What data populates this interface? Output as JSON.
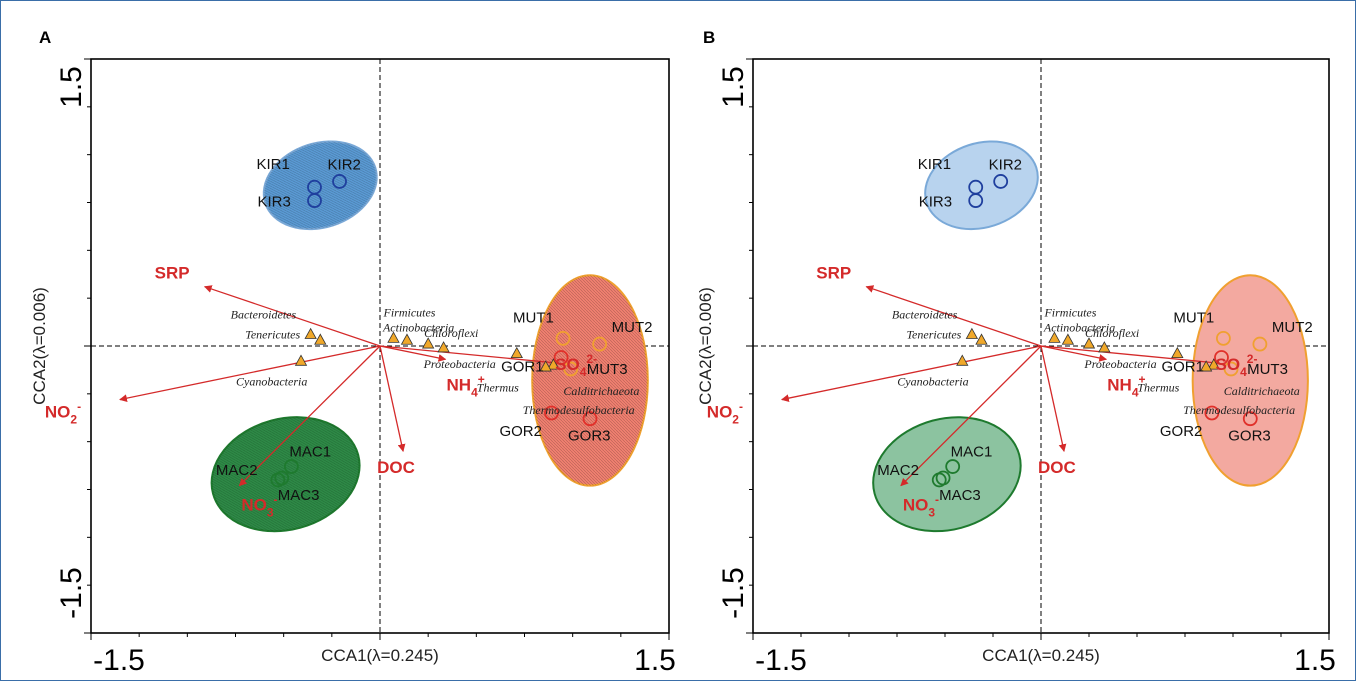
{
  "chart_data": [
    {
      "type": "scatter",
      "panel_label": "A",
      "xlabel": "CCA1(λ=0.245)",
      "ylabel": "CCA2(λ=0.006)",
      "xlim": [
        -1.5,
        1.5
      ],
      "ylim": [
        -1.5,
        1.5
      ],
      "xticks": [
        "-1.5",
        "1.5"
      ],
      "yticks": [
        "1.5",
        "-1.5"
      ],
      "ellipse_fill": "textured",
      "groups": [
        {
          "name": "KIR",
          "color": "#1f3f9e",
          "fill": "#5b9bd5",
          "samples": [
            {
              "label": "KIR1",
              "x": -0.34,
              "y": 0.83
            },
            {
              "label": "KIR2",
              "x": -0.21,
              "y": 0.86
            },
            {
              "label": "KIR3",
              "x": -0.34,
              "y": 0.76
            }
          ],
          "ellipse": {
            "cx": -0.31,
            "cy": 0.84,
            "rx": 0.3,
            "ry": 0.22,
            "rot": -18
          }
        },
        {
          "name": "MAC",
          "color": "#1e7a2e",
          "fill": "#2e8b47",
          "samples": [
            {
              "label": "MAC1",
              "x": -0.46,
              "y": -0.63
            },
            {
              "label": "MAC2",
              "x": -0.53,
              "y": -0.7
            },
            {
              "label": "MAC3",
              "x": -0.51,
              "y": -0.69
            }
          ],
          "ellipse": {
            "cx": -0.49,
            "cy": -0.67,
            "rx": 0.39,
            "ry": 0.29,
            "rot": -15
          }
        },
        {
          "name": "MUT",
          "color": "#f0a030",
          "fill": "#f08070",
          "samples": [
            {
              "label": "MUT1",
              "x": 0.95,
              "y": 0.04
            },
            {
              "label": "MUT2",
              "x": 1.14,
              "y": 0.01
            },
            {
              "label": "MUT3",
              "x": 0.99,
              "y": -0.12
            }
          ],
          "ellipse": null
        },
        {
          "name": "GOR",
          "color": "#e0302a",
          "fill": "#f08070",
          "samples": [
            {
              "label": "GOR1",
              "x": 0.94,
              "y": -0.06
            },
            {
              "label": "GOR2",
              "x": 0.89,
              "y": -0.35
            },
            {
              "label": "GOR3",
              "x": 1.09,
              "y": -0.38
            }
          ],
          "ellipse": null
        }
      ],
      "shared_ellipse": {
        "groups": [
          "MUT",
          "GOR"
        ],
        "cx": 1.09,
        "cy": -0.18,
        "rx": 0.3,
        "ry": 0.55,
        "rot": 0
      },
      "env_vectors": [
        {
          "label": "SRP",
          "sub": "",
          "sup": "",
          "x": -0.91,
          "y": 0.31
        },
        {
          "label": "NO",
          "sub": "2",
          "sup": "-",
          "x": -1.35,
          "y": -0.28
        },
        {
          "label": "NO",
          "sub": "3",
          "sup": "-",
          "x": -0.73,
          "y": -0.73
        },
        {
          "label": "DOC",
          "sub": "",
          "sup": "",
          "x": 0.12,
          "y": -0.55
        },
        {
          "label": "NH",
          "sub": "4",
          "sup": "+",
          "x": 0.34,
          "y": -0.07
        },
        {
          "label": "SO",
          "sub": "4",
          "sup": "2-",
          "x": 0.93,
          "y": -0.09
        }
      ],
      "taxa": [
        {
          "label": "Bacteroidetes",
          "x": -0.36,
          "y": 0.06
        },
        {
          "label": "Tenericutes",
          "x": -0.31,
          "y": 0.03
        },
        {
          "label": "Cyanobacteria",
          "x": -0.41,
          "y": -0.08
        },
        {
          "label": "Firmicutes",
          "x": 0.07,
          "y": 0.04
        },
        {
          "label": "Actinobacteria",
          "x": 0.14,
          "y": 0.03
        },
        {
          "label": "Chloroflexi",
          "x": 0.25,
          "y": 0.01
        },
        {
          "label": "Proteobacteria",
          "x": 0.33,
          "y": -0.01
        },
        {
          "label": "Thermus",
          "x": 0.71,
          "y": -0.04
        },
        {
          "label": "Calditrichaeota",
          "x": 0.9,
          "y": -0.1
        },
        {
          "label": "Thermodesulfobacteria",
          "x": 0.86,
          "y": -0.11
        }
      ]
    },
    {
      "type": "scatter",
      "panel_label": "B",
      "xlabel": "CCA1(λ=0.245)",
      "ylabel": "CCA2(λ=0.006)",
      "xlim": [
        -1.5,
        1.5
      ],
      "ylim": [
        -1.5,
        1.5
      ],
      "xticks": [
        "-1.5",
        "1.5"
      ],
      "yticks": [
        "1.5",
        "-1.5"
      ],
      "ellipse_fill": "solid",
      "groups": [
        {
          "name": "KIR",
          "color": "#1f3f9e",
          "fill": "#b8d3ee",
          "samples": [
            {
              "label": "KIR1",
              "x": -0.34,
              "y": 0.83
            },
            {
              "label": "KIR2",
              "x": -0.21,
              "y": 0.86
            },
            {
              "label": "KIR3",
              "x": -0.34,
              "y": 0.76
            }
          ],
          "ellipse": {
            "cx": -0.31,
            "cy": 0.84,
            "rx": 0.3,
            "ry": 0.22,
            "rot": -18
          }
        },
        {
          "name": "MAC",
          "color": "#1e7a2e",
          "fill": "#8cc3a0",
          "samples": [
            {
              "label": "MAC1",
              "x": -0.46,
              "y": -0.63
            },
            {
              "label": "MAC2",
              "x": -0.53,
              "y": -0.7
            },
            {
              "label": "MAC3",
              "x": -0.51,
              "y": -0.69
            }
          ],
          "ellipse": {
            "cx": -0.49,
            "cy": -0.67,
            "rx": 0.39,
            "ry": 0.29,
            "rot": -15
          }
        },
        {
          "name": "MUT",
          "color": "#f0a030",
          "fill": "#f3a9a0",
          "samples": [
            {
              "label": "MUT1",
              "x": 0.95,
              "y": 0.04
            },
            {
              "label": "MUT2",
              "x": 1.14,
              "y": 0.01
            },
            {
              "label": "MUT3",
              "x": 0.99,
              "y": -0.12
            }
          ],
          "ellipse": null
        },
        {
          "name": "GOR",
          "color": "#e0302a",
          "fill": "#f3a9a0",
          "samples": [
            {
              "label": "GOR1",
              "x": 0.94,
              "y": -0.06
            },
            {
              "label": "GOR2",
              "x": 0.89,
              "y": -0.35
            },
            {
              "label": "GOR3",
              "x": 1.09,
              "y": -0.38
            }
          ],
          "ellipse": null
        }
      ],
      "shared_ellipse": {
        "groups": [
          "MUT",
          "GOR"
        ],
        "cx": 1.09,
        "cy": -0.18,
        "rx": 0.3,
        "ry": 0.55,
        "rot": 0
      },
      "env_vectors": [
        {
          "label": "SRP",
          "sub": "",
          "sup": "",
          "x": -0.91,
          "y": 0.31
        },
        {
          "label": "NO",
          "sub": "2",
          "sup": "-",
          "x": -1.35,
          "y": -0.28
        },
        {
          "label": "NO",
          "sub": "3",
          "sup": "-",
          "x": -0.73,
          "y": -0.73
        },
        {
          "label": "DOC",
          "sub": "",
          "sup": "",
          "x": 0.12,
          "y": -0.55
        },
        {
          "label": "NH",
          "sub": "4",
          "sup": "+",
          "x": 0.34,
          "y": -0.07
        },
        {
          "label": "SO",
          "sub": "4",
          "sup": "2-",
          "x": 0.93,
          "y": -0.09
        }
      ],
      "taxa": [
        {
          "label": "Bacteroidetes",
          "x": -0.36,
          "y": 0.06
        },
        {
          "label": "Tenericutes",
          "x": -0.31,
          "y": 0.03
        },
        {
          "label": "Cyanobacteria",
          "x": -0.41,
          "y": -0.08
        },
        {
          "label": "Firmicutes",
          "x": 0.07,
          "y": 0.04
        },
        {
          "label": "Actinobacteria",
          "x": 0.14,
          "y": 0.03
        },
        {
          "label": "Chloroflexi",
          "x": 0.25,
          "y": 0.01
        },
        {
          "label": "Proteobacteria",
          "x": 0.33,
          "y": -0.01
        },
        {
          "label": "Thermus",
          "x": 0.71,
          "y": -0.04
        },
        {
          "label": "Calditrichaeota",
          "x": 0.9,
          "y": -0.1
        },
        {
          "label": "Thermodesulfobacteria",
          "x": 0.86,
          "y": -0.11
        }
      ]
    }
  ],
  "colors": {
    "vector": "#d42a2a",
    "triangle_fill": "#f0a82a",
    "axis": "#000000"
  }
}
